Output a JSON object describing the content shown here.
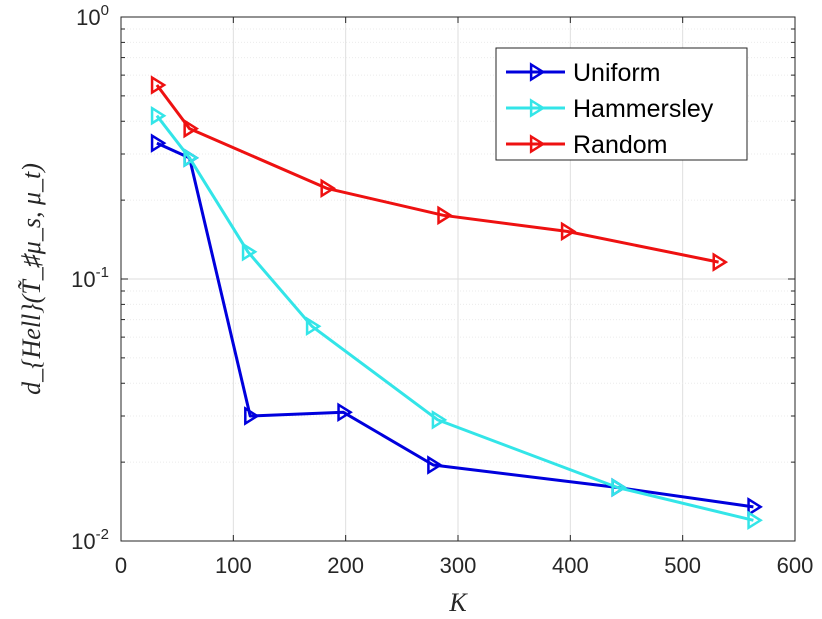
{
  "chart_data": {
    "type": "line",
    "xlabel": "K",
    "ylabel": "d_{Hell}(T̃_♯μ_s, μ_t)",
    "xlim": [
      0,
      600
    ],
    "ylim": [
      0.01,
      1
    ],
    "yscale": "log",
    "grid": true,
    "legend_position": "top-right",
    "x_ticks": [
      "0",
      "100",
      "200",
      "300",
      "400",
      "500",
      "600"
    ],
    "y_ticks": [
      {
        "base": "10",
        "exp": "-2"
      },
      {
        "base": "10",
        "exp": "-1"
      },
      {
        "base": "10",
        "exp": "0"
      }
    ],
    "marker": "triangle-right",
    "series": [
      {
        "name": "Uniform",
        "color": "#0000dd",
        "points": [
          [
            32,
            0.33
          ],
          [
            61,
            0.29
          ],
          [
            115,
            0.03
          ],
          [
            198,
            0.031
          ],
          [
            278,
            0.0195
          ],
          [
            442,
            0.016
          ],
          [
            563,
            0.0135
          ]
        ]
      },
      {
        "name": "Hammersley",
        "color": "#33e5e8",
        "points": [
          [
            32,
            0.42
          ],
          [
            61,
            0.29
          ],
          [
            113,
            0.127
          ],
          [
            170,
            0.066
          ],
          [
            282,
            0.029
          ],
          [
            442,
            0.016
          ],
          [
            563,
            0.012
          ]
        ]
      },
      {
        "name": "Random",
        "color": "#ee1111",
        "points": [
          [
            32,
            0.55
          ],
          [
            61,
            0.375
          ],
          [
            183,
            0.222
          ],
          [
            287,
            0.175
          ],
          [
            397,
            0.152
          ],
          [
            532,
            0.116
          ]
        ]
      }
    ]
  }
}
